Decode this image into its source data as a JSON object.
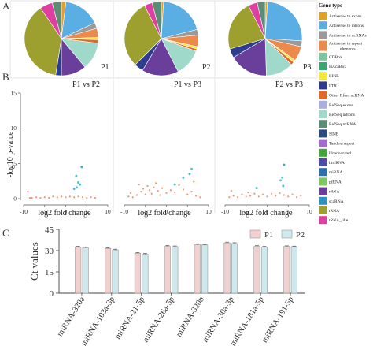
{
  "panels": {
    "A": "A",
    "B": "B",
    "C": "C"
  },
  "legend": {
    "title": "Gene type",
    "items": [
      {
        "label": "Antisense to exons",
        "color": "#e2a02a"
      },
      {
        "label": "Antisense to introns",
        "color": "#5aaee3"
      },
      {
        "label": "Antisense to ncRNAs",
        "color": "#9a9a9a"
      },
      {
        "label": "Antisense to repeat elements",
        "color": "#ec8a4e"
      },
      {
        "label": "CDBox",
        "color": "#79c79e"
      },
      {
        "label": "HAcaBox",
        "color": "#35a86f"
      },
      {
        "label": "LINE",
        "color": "#f4e83a"
      },
      {
        "label": "LTR",
        "color": "#2f3c8e"
      },
      {
        "label": "Other Rfam ncRNA",
        "color": "#e26a26"
      },
      {
        "label": "RefSeq exons",
        "color": "#a8aee0"
      },
      {
        "label": "RefSeq introns",
        "color": "#9fd9ca"
      },
      {
        "label": "RefSeq ncRNA",
        "color": "#5b8d75"
      },
      {
        "label": "SINE",
        "color": "#274a86"
      },
      {
        "label": "Tandem repeat",
        "color": "#a26ad2"
      },
      {
        "label": "Unannotated",
        "color": "#3fa83a"
      },
      {
        "label": "lincRNA",
        "color": "#4d4aa8"
      },
      {
        "label": "miRNA",
        "color": "#2c6fae"
      },
      {
        "label": "piRNA",
        "color": "#7bc85c"
      },
      {
        "label": "rRNA",
        "color": "#6a3f9c"
      },
      {
        "label": "scaRNA",
        "color": "#2d91c4"
      },
      {
        "label": "tRNA",
        "color": "#9da02e"
      },
      {
        "label": "tRNA_like",
        "color": "#de3fa0"
      }
    ]
  },
  "chart_data": [
    {
      "type": "pie",
      "label": "P1",
      "slices": [
        {
          "name": "Antisense to exons",
          "value": 2.0
        },
        {
          "name": "Antisense to introns",
          "value": 16.0
        },
        {
          "name": "Antisense to ncRNAs",
          "value": 2.5
        },
        {
          "name": "Antisense to repeat elements",
          "value": 4.0
        },
        {
          "name": "LINE",
          "value": 1.0
        },
        {
          "name": "Other Rfam ncRNA",
          "value": 1.5
        },
        {
          "name": "RefSeq introns",
          "value": 12.0
        },
        {
          "name": "rRNA",
          "value": 11.0
        },
        {
          "name": "LTR",
          "value": 2.5
        },
        {
          "name": "tRNA",
          "value": 38.0
        },
        {
          "name": "tRNA_like",
          "value": 5.5
        },
        {
          "name": "RefSeq ncRNA",
          "value": 4.0
        }
      ]
    },
    {
      "type": "pie",
      "label": "P2",
      "slices": [
        {
          "name": "Antisense to exons",
          "value": 1.0
        },
        {
          "name": "Antisense to introns",
          "value": 20.0
        },
        {
          "name": "Antisense to ncRNAs",
          "value": 2.5
        },
        {
          "name": "Antisense to repeat elements",
          "value": 5.0
        },
        {
          "name": "LINE",
          "value": 1.0
        },
        {
          "name": "Other Rfam ncRNA",
          "value": 1.0
        },
        {
          "name": "RefSeq introns",
          "value": 12.0
        },
        {
          "name": "rRNA",
          "value": 16.0
        },
        {
          "name": "LTR",
          "value": 4.0
        },
        {
          "name": "tRNA",
          "value": 30.0
        },
        {
          "name": "tRNA_like",
          "value": 3.5
        },
        {
          "name": "RefSeq ncRNA",
          "value": 4.0
        }
      ]
    },
    {
      "type": "pie",
      "label": "P3",
      "slices": [
        {
          "name": "Antisense to exons",
          "value": 1.0
        },
        {
          "name": "Antisense to introns",
          "value": 25.0
        },
        {
          "name": "Antisense to ncRNAs",
          "value": 2.5
        },
        {
          "name": "Antisense to repeat elements",
          "value": 6.5
        },
        {
          "name": "LINE",
          "value": 1.0
        },
        {
          "name": "Other Rfam ncRNA",
          "value": 1.5
        },
        {
          "name": "RefSeq introns",
          "value": 12.0
        },
        {
          "name": "rRNA",
          "value": 17.0
        },
        {
          "name": "LTR",
          "value": 4.0
        },
        {
          "name": "tRNA",
          "value": 22.0
        },
        {
          "name": "tRNA_like",
          "value": 4.0
        },
        {
          "name": "RefSeq ncRNA",
          "value": 3.5
        }
      ]
    },
    {
      "type": "scatter",
      "title": "P1 vs P2",
      "xlabel": "log2 fold change",
      "ylabel": "-log10 p-value",
      "xlim": [
        -10,
        10
      ],
      "ylim": [
        0,
        15
      ],
      "xticks": [
        "-10",
        "-5",
        "0",
        "5",
        "10"
      ],
      "yticks": [
        "0",
        "5",
        "10",
        "15"
      ],
      "points": [
        {
          "x": -8.5,
          "y": 0.1,
          "g": "ns"
        },
        {
          "x": -8.0,
          "y": 0.1,
          "g": "ns"
        },
        {
          "x": -7.0,
          "y": 0.2,
          "g": "ns"
        },
        {
          "x": -6.0,
          "y": 0.1,
          "g": "ns"
        },
        {
          "x": -5.0,
          "y": 0.2,
          "g": "ns"
        },
        {
          "x": -4.0,
          "y": 0.1,
          "g": "ns"
        },
        {
          "x": -3.0,
          "y": 0.3,
          "g": "ns"
        },
        {
          "x": -2.0,
          "y": 0.2,
          "g": "ns"
        },
        {
          "x": -1.0,
          "y": 0.3,
          "g": "ns"
        },
        {
          "x": 0.0,
          "y": 0.2,
          "g": "ns"
        },
        {
          "x": 1.0,
          "y": 0.3,
          "g": "ns"
        },
        {
          "x": 2.0,
          "y": 0.2,
          "g": "ns"
        },
        {
          "x": 3.0,
          "y": 0.3,
          "g": "ns"
        },
        {
          "x": 4.0,
          "y": 0.2,
          "g": "ns"
        },
        {
          "x": 5.0,
          "y": 0.1,
          "g": "ns"
        },
        {
          "x": 6.0,
          "y": 0.2,
          "g": "ns"
        },
        {
          "x": 7.0,
          "y": 0.1,
          "g": "ns"
        },
        {
          "x": -9.0,
          "y": 1.0,
          "g": "ns"
        },
        {
          "x": 2.5,
          "y": 3.2,
          "g": "sig"
        },
        {
          "x": 3.0,
          "y": 2.3,
          "g": "sig"
        },
        {
          "x": 3.4,
          "y": 2.0,
          "g": "sig"
        },
        {
          "x": 2.0,
          "y": 1.4,
          "g": "sig"
        },
        {
          "x": 3.8,
          "y": 4.5,
          "g": "hi"
        },
        {
          "x": 2.6,
          "y": 1.6,
          "g": "sig"
        }
      ]
    },
    {
      "type": "scatter",
      "title": "P1 vs P3",
      "xlabel": "log2 fold change",
      "xlim": [
        -10,
        10
      ],
      "ylim": [
        0,
        15
      ],
      "xticks": [
        "-10",
        "-5",
        "0",
        "5",
        "10"
      ],
      "points": [
        {
          "x": -9.0,
          "y": 0.3,
          "g": "ns"
        },
        {
          "x": -8.5,
          "y": 0.8,
          "g": "ns"
        },
        {
          "x": -8.0,
          "y": 0.2,
          "g": "ns"
        },
        {
          "x": -7.0,
          "y": 0.5,
          "g": "ns"
        },
        {
          "x": -6.0,
          "y": 1.0,
          "g": "ns"
        },
        {
          "x": -5.5,
          "y": 1.4,
          "g": "ns"
        },
        {
          "x": -5.0,
          "y": 0.6,
          "g": "ns"
        },
        {
          "x": -4.5,
          "y": 1.8,
          "g": "ns"
        },
        {
          "x": -4.0,
          "y": 1.2,
          "g": "ns"
        },
        {
          "x": -3.5,
          "y": 0.7,
          "g": "ns"
        },
        {
          "x": -3.0,
          "y": 1.6,
          "g": "ns"
        },
        {
          "x": -2.5,
          "y": 2.2,
          "g": "ns"
        },
        {
          "x": -2.0,
          "y": 1.1,
          "g": "ns"
        },
        {
          "x": -1.5,
          "y": 0.5,
          "g": "ns"
        },
        {
          "x": -1.0,
          "y": 1.5,
          "g": "ns"
        },
        {
          "x": 0.0,
          "y": 0.8,
          "g": "ns"
        },
        {
          "x": 1.0,
          "y": 1.2,
          "g": "ns"
        },
        {
          "x": 2.0,
          "y": 0.9,
          "g": "ns"
        },
        {
          "x": 3.0,
          "y": 1.9,
          "g": "ns"
        },
        {
          "x": 4.0,
          "y": 1.3,
          "g": "ns"
        },
        {
          "x": 5.0,
          "y": 0.6,
          "g": "ns"
        },
        {
          "x": 6.0,
          "y": 1.0,
          "g": "ns"
        },
        {
          "x": 7.0,
          "y": 0.4,
          "g": "ns"
        },
        {
          "x": 8.0,
          "y": 0.2,
          "g": "ns"
        },
        {
          "x": 6.5,
          "y": 2.4,
          "g": "ns"
        },
        {
          "x": -6.5,
          "y": 2.0,
          "g": "ns"
        },
        {
          "x": 2.0,
          "y": 2.0,
          "g": "sig"
        },
        {
          "x": 4.0,
          "y": 3.0,
          "g": "sig"
        },
        {
          "x": 5.5,
          "y": 3.5,
          "g": "sig"
        },
        {
          "x": 6.0,
          "y": 4.2,
          "g": "hi"
        }
      ]
    },
    {
      "type": "scatter",
      "title": "P2 vs P3",
      "xlabel": "log2 fold change",
      "xlim": [
        -10,
        10
      ],
      "ylim": [
        0,
        15
      ],
      "xticks": [
        "-10",
        "-5",
        "0",
        "5",
        "10"
      ],
      "points": [
        {
          "x": -9.0,
          "y": 0.2,
          "g": "ns"
        },
        {
          "x": -8.0,
          "y": 0.4,
          "g": "ns"
        },
        {
          "x": -7.0,
          "y": 0.2,
          "g": "ns"
        },
        {
          "x": -6.0,
          "y": 0.6,
          "g": "ns"
        },
        {
          "x": -5.0,
          "y": 0.3,
          "g": "ns"
        },
        {
          "x": -4.5,
          "y": 0.9,
          "g": "ns"
        },
        {
          "x": -4.0,
          "y": 0.4,
          "g": "ns"
        },
        {
          "x": -3.0,
          "y": 0.7,
          "g": "ns"
        },
        {
          "x": -2.0,
          "y": 0.3,
          "g": "ns"
        },
        {
          "x": -1.0,
          "y": 0.6,
          "g": "ns"
        },
        {
          "x": 0.0,
          "y": 0.3,
          "g": "ns"
        },
        {
          "x": 1.0,
          "y": 0.7,
          "g": "ns"
        },
        {
          "x": 2.0,
          "y": 0.4,
          "g": "ns"
        },
        {
          "x": 3.0,
          "y": 0.8,
          "g": "ns"
        },
        {
          "x": 4.0,
          "y": 0.5,
          "g": "ns"
        },
        {
          "x": 5.0,
          "y": 0.3,
          "g": "ns"
        },
        {
          "x": 6.0,
          "y": 0.6,
          "g": "ns"
        },
        {
          "x": 7.0,
          "y": 0.2,
          "g": "ns"
        },
        {
          "x": 8.0,
          "y": 0.4,
          "g": "ns"
        },
        {
          "x": -8.5,
          "y": 1.1,
          "g": "ns"
        },
        {
          "x": -2.5,
          "y": 1.5,
          "g": "sig"
        },
        {
          "x": 3.2,
          "y": 2.6,
          "g": "sig"
        },
        {
          "x": 3.6,
          "y": 3.0,
          "g": "sig"
        },
        {
          "x": 4.0,
          "y": 4.8,
          "g": "hi"
        },
        {
          "x": 3.8,
          "y": 1.8,
          "g": "sig"
        }
      ]
    },
    {
      "type": "bar",
      "ylabel": "Ct values",
      "ylim": [
        0,
        45
      ],
      "yticks": [
        "0",
        "15",
        "30",
        "45"
      ],
      "categories": [
        "miRNA-320a",
        "miRNA-103a-3p",
        "miRNA-21-5p",
        "miRNA-26a-5p",
        "miRNA-320b",
        "miRNA-30a-3p",
        "miRNA-181a-5p",
        "miRNA-191-5p"
      ],
      "series": [
        {
          "name": "P1",
          "color": "#f3d0d0",
          "values": [
            32.5,
            31.5,
            28.2,
            33.0,
            34.2,
            35.5,
            33.0,
            33.0
          ],
          "err": [
            0.6,
            0.5,
            0.5,
            0.6,
            0.4,
            0.5,
            0.5,
            0.4
          ]
        },
        {
          "name": "P2",
          "color": "#cde9ed",
          "values": [
            32.0,
            30.5,
            27.5,
            32.8,
            34.0,
            35.0,
            32.5,
            32.8
          ],
          "err": [
            0.5,
            0.5,
            0.5,
            0.5,
            0.4,
            0.6,
            0.5,
            0.4
          ]
        }
      ]
    }
  ],
  "colors": {
    "ns": "#f08868",
    "sig": "#3bbac6",
    "hi": "#2ca4a8"
  }
}
